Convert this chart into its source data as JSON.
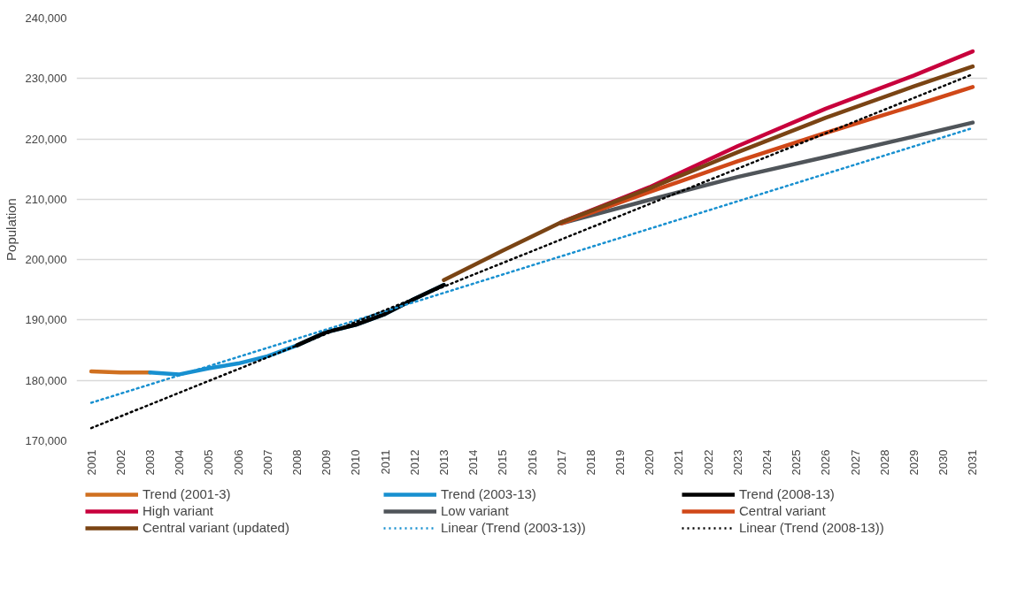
{
  "chart_data": {
    "type": "line",
    "ylabel": "Population",
    "xlim": [
      2000.5,
      2031.5
    ],
    "ylim": [
      170000,
      240000
    ],
    "xticks": [
      2001,
      2002,
      2003,
      2004,
      2005,
      2006,
      2007,
      2008,
      2009,
      2010,
      2011,
      2012,
      2013,
      2014,
      2015,
      2016,
      2017,
      2018,
      2019,
      2020,
      2021,
      2022,
      2023,
      2024,
      2025,
      2026,
      2027,
      2028,
      2029,
      2030,
      2031
    ],
    "yticks": [
      {
        "value": 170000,
        "label": "170,000"
      },
      {
        "value": 180000,
        "label": "180,000"
      },
      {
        "value": 190000,
        "label": "190,000"
      },
      {
        "value": 200000,
        "label": "200,000"
      },
      {
        "value": 210000,
        "label": "210,000"
      },
      {
        "value": 220000,
        "label": "220,000"
      },
      {
        "value": 230000,
        "label": "230,000"
      },
      {
        "value": 240000,
        "label": "240,000"
      }
    ],
    "grid": "y",
    "legend": "bottom",
    "line_style": "solid",
    "series": [
      {
        "name": "Trend (2001-3)",
        "color": "#d07020",
        "x": [
          2001,
          2002,
          2003
        ],
        "values": [
          181500,
          181300,
          181300
        ]
      },
      {
        "name": "Trend (2003-13)",
        "color": "#1890d0",
        "x": [
          2003,
          2004,
          2005,
          2006,
          2007,
          2008,
          2009,
          2010,
          2011,
          2012,
          2013
        ],
        "values": [
          181300,
          181000,
          182000,
          182800,
          184000,
          185800,
          188000,
          189200,
          191000,
          193500,
          195800
        ]
      },
      {
        "name": "Trend (2008-13)",
        "color": "#000000",
        "x": [
          2008,
          2009,
          2010,
          2011,
          2012,
          2013
        ],
        "values": [
          185800,
          188000,
          189200,
          191000,
          193500,
          195800
        ]
      },
      {
        "name": "High variant",
        "color": "#c8003c",
        "x": [
          2017,
          2020,
          2023,
          2026,
          2029,
          2031
        ],
        "values": [
          206200,
          212000,
          218800,
          225000,
          230500,
          234500
        ]
      },
      {
        "name": "Low variant",
        "color": "#50555a",
        "x": [
          2017,
          2020,
          2023,
          2026,
          2029,
          2031
        ],
        "values": [
          206000,
          209900,
          213700,
          217000,
          220400,
          222700
        ]
      },
      {
        "name": "Central variant",
        "color": "#d04818",
        "x": [
          2017,
          2020,
          2023,
          2026,
          2029,
          2031
        ],
        "values": [
          206000,
          211200,
          216300,
          221000,
          225500,
          228600
        ]
      },
      {
        "name": "Central variant (updated)",
        "color": "#7a4414",
        "x": [
          2013,
          2015,
          2017,
          2020,
          2023,
          2026,
          2029,
          2031
        ],
        "values": [
          196600,
          201500,
          206200,
          211800,
          217800,
          223500,
          228700,
          232000
        ]
      },
      {
        "name": "Linear (Trend (2003-13))",
        "color": "#1890d0",
        "line_style": "dotted",
        "x": [
          2001,
          2031
        ],
        "values": [
          176300,
          221800
        ]
      },
      {
        "name": "Linear (Trend (2008-13))",
        "color": "#000000",
        "line_style": "dotted",
        "x": [
          2001,
          2031
        ],
        "values": [
          172100,
          230700
        ]
      }
    ]
  }
}
